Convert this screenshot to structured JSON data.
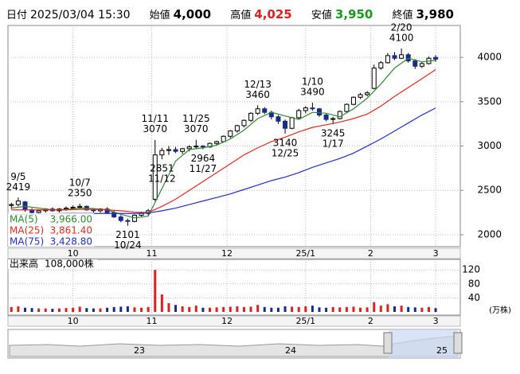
{
  "chart_data": {
    "type": "candlestick",
    "header": {
      "date_label": "日付",
      "datetime": "2025/03/04 15:30",
      "open_label": "始値",
      "open": "4,000",
      "high_label": "高値",
      "high": "4,025",
      "low_label": "安値",
      "low": "3,950",
      "close_label": "終値",
      "close": "3,980"
    },
    "ylim": [
      1865,
      4360
    ],
    "yticks": [
      2000,
      2500,
      3000,
      3500,
      4000
    ],
    "xlim": [
      -0.5,
      65.6
    ],
    "xticks": [
      {
        "value": 9,
        "label": "10"
      },
      {
        "value": 20.5,
        "label": "11"
      },
      {
        "value": 31.5,
        "label": "12"
      },
      {
        "value": 43,
        "label": "25/1"
      },
      {
        "value": 52.5,
        "label": "2"
      },
      {
        "value": 62,
        "label": "3"
      }
    ],
    "grid": true,
    "up_color": "#ffffff",
    "down_color": "#1a2a8c",
    "candles": [
      {
        "o": 2330,
        "h": 2360,
        "l": 2290,
        "c": 2340
      },
      {
        "o": 2340,
        "h": 2419,
        "l": 2320,
        "c": 2380,
        "high_label": "9/5"
      },
      {
        "o": 2370,
        "h": 2380,
        "l": 2260,
        "c": 2280
      },
      {
        "o": 2280,
        "h": 2300,
        "l": 2230,
        "c": 2250
      },
      {
        "o": 2250,
        "h": 2280,
        "l": 2230,
        "c": 2270
      },
      {
        "o": 2270,
        "h": 2300,
        "l": 2250,
        "c": 2290
      },
      {
        "o": 2290,
        "h": 2310,
        "l": 2260,
        "c": 2270
      },
      {
        "o": 2270,
        "h": 2300,
        "l": 2250,
        "c": 2290
      },
      {
        "o": 2290,
        "h": 2320,
        "l": 2270,
        "c": 2300
      },
      {
        "o": 2300,
        "h": 2330,
        "l": 2280,
        "c": 2310
      },
      {
        "o": 2310,
        "h": 2350,
        "l": 2290,
        "c": 2320,
        "high_label": "10/7"
      },
      {
        "o": 2320,
        "h": 2330,
        "l": 2270,
        "c": 2280
      },
      {
        "o": 2280,
        "h": 2300,
        "l": 2250,
        "c": 2270
      },
      {
        "o": 2270,
        "h": 2300,
        "l": 2250,
        "c": 2290
      },
      {
        "o": 2290,
        "h": 2310,
        "l": 2240,
        "c": 2250
      },
      {
        "o": 2250,
        "h": 2270,
        "l": 2190,
        "c": 2200
      },
      {
        "o": 2200,
        "h": 2220,
        "l": 2140,
        "c": 2160
      },
      {
        "o": 2160,
        "h": 2180,
        "l": 2101,
        "c": 2150,
        "low_label": "10/24"
      },
      {
        "o": 2150,
        "h": 2230,
        "l": 2140,
        "c": 2220
      },
      {
        "o": 2220,
        "h": 2260,
        "l": 2200,
        "c": 2240
      },
      {
        "o": 2240,
        "h": 2290,
        "l": 2220,
        "c": 2270
      },
      {
        "o": 2400,
        "h": 3070,
        "l": 2380,
        "c": 2900,
        "high_label": "11/11"
      },
      {
        "o": 2900,
        "h": 2980,
        "l": 2851,
        "c": 2950,
        "low_label": "11/12"
      },
      {
        "o": 2950,
        "h": 3000,
        "l": 2900,
        "c": 2960
      },
      {
        "o": 2960,
        "h": 2990,
        "l": 2920,
        "c": 2940
      },
      {
        "o": 2940,
        "h": 2980,
        "l": 2910,
        "c": 2970
      },
      {
        "o": 2970,
        "h": 3010,
        "l": 2940,
        "c": 2990
      },
      {
        "o": 2990,
        "h": 3070,
        "l": 2970,
        "c": 3000,
        "high_label": "11/25"
      },
      {
        "o": 3000,
        "h": 3010,
        "l": 2964,
        "c": 2990,
        "low_label": "11/27"
      },
      {
        "o": 2990,
        "h": 3040,
        "l": 2980,
        "c": 3030
      },
      {
        "o": 3030,
        "h": 3060,
        "l": 3010,
        "c": 3050
      },
      {
        "o": 3050,
        "h": 3120,
        "l": 3040,
        "c": 3110
      },
      {
        "o": 3110,
        "h": 3180,
        "l": 3090,
        "c": 3170
      },
      {
        "o": 3170,
        "h": 3240,
        "l": 3150,
        "c": 3230
      },
      {
        "o": 3230,
        "h": 3300,
        "l": 3210,
        "c": 3290
      },
      {
        "o": 3290,
        "h": 3380,
        "l": 3270,
        "c": 3370
      },
      {
        "o": 3370,
        "h": 3460,
        "l": 3350,
        "c": 3420,
        "high_label": "12/13"
      },
      {
        "o": 3420,
        "h": 3440,
        "l": 3360,
        "c": 3380
      },
      {
        "o": 3380,
        "h": 3400,
        "l": 3300,
        "c": 3330
      },
      {
        "o": 3330,
        "h": 3350,
        "l": 3250,
        "c": 3280
      },
      {
        "o": 3280,
        "h": 3300,
        "l": 3140,
        "c": 3200,
        "low_label": "12/25"
      },
      {
        "o": 3200,
        "h": 3330,
        "l": 3190,
        "c": 3320
      },
      {
        "o": 3320,
        "h": 3420,
        "l": 3300,
        "c": 3400
      },
      {
        "o": 3400,
        "h": 3450,
        "l": 3370,
        "c": 3430
      },
      {
        "o": 3430,
        "h": 3490,
        "l": 3400,
        "c": 3420,
        "high_label": "1/10"
      },
      {
        "o": 3420,
        "h": 3430,
        "l": 3330,
        "c": 3350
      },
      {
        "o": 3350,
        "h": 3370,
        "l": 3280,
        "c": 3300
      },
      {
        "o": 3300,
        "h": 3330,
        "l": 3245,
        "c": 3310,
        "low_label": "1/17"
      },
      {
        "o": 3310,
        "h": 3400,
        "l": 3300,
        "c": 3390
      },
      {
        "o": 3390,
        "h": 3480,
        "l": 3380,
        "c": 3470
      },
      {
        "o": 3470,
        "h": 3560,
        "l": 3460,
        "c": 3550
      },
      {
        "o": 3550,
        "h": 3600,
        "l": 3530,
        "c": 3580
      },
      {
        "o": 3580,
        "h": 3620,
        "l": 3560,
        "c": 3600
      },
      {
        "o": 3650,
        "h": 3920,
        "l": 3640,
        "c": 3880
      },
      {
        "o": 3880,
        "h": 3960,
        "l": 3860,
        "c": 3940
      },
      {
        "o": 3940,
        "h": 4050,
        "l": 3930,
        "c": 4020
      },
      {
        "o": 4020,
        "h": 4060,
        "l": 3970,
        "c": 3990
      },
      {
        "o": 3990,
        "h": 4100,
        "l": 3980,
        "c": 4030,
        "high_label": "2/20"
      },
      {
        "o": 4030,
        "h": 4050,
        "l": 3940,
        "c": 3960
      },
      {
        "o": 3960,
        "h": 3980,
        "l": 3870,
        "c": 3900
      },
      {
        "o": 3900,
        "h": 3950,
        "l": 3880,
        "c": 3930
      },
      {
        "o": 3930,
        "h": 4010,
        "l": 3920,
        "c": 3990
      },
      {
        "o": 4000,
        "h": 4025,
        "l": 3950,
        "c": 3980
      }
    ],
    "ma": [
      {
        "name": "MA(5)",
        "value_label": "3,966.00",
        "color": "#2e8b2e",
        "x": [
          0,
          2,
          4,
          6,
          8,
          10,
          12,
          14,
          16,
          18,
          20,
          22,
          24,
          26,
          28,
          30,
          32,
          34,
          36,
          38,
          40,
          42,
          44,
          46,
          48,
          50,
          52,
          54,
          56,
          58,
          60,
          62
        ],
        "values": [
          2300,
          2320,
          2300,
          2280,
          2285,
          2300,
          2295,
          2280,
          2230,
          2190,
          2210,
          2520,
          2830,
          2960,
          2980,
          3010,
          3080,
          3180,
          3310,
          3380,
          3340,
          3300,
          3380,
          3370,
          3330,
          3420,
          3540,
          3700,
          3880,
          3990,
          3950,
          3966
        ]
      },
      {
        "name": "MA(25)",
        "value_label": "3,861.40",
        "color": "#e8291c",
        "x": [
          0,
          2,
          4,
          6,
          8,
          10,
          12,
          14,
          16,
          18,
          20,
          22,
          24,
          26,
          28,
          30,
          32,
          34,
          36,
          38,
          40,
          42,
          44,
          46,
          48,
          50,
          52,
          54,
          56,
          58,
          60,
          62
        ],
        "values": [
          2280,
          2280,
          2280,
          2280,
          2280,
          2285,
          2285,
          2280,
          2270,
          2255,
          2250,
          2320,
          2400,
          2500,
          2600,
          2700,
          2800,
          2900,
          2980,
          3050,
          3100,
          3160,
          3210,
          3240,
          3270,
          3310,
          3360,
          3450,
          3560,
          3660,
          3760,
          3861.4
        ]
      },
      {
        "name": "MA(75)",
        "value_label": "3,428.80",
        "color": "#1f2fd0",
        "x": [
          0,
          2,
          4,
          6,
          8,
          10,
          12,
          14,
          16,
          18,
          20,
          22,
          24,
          26,
          28,
          30,
          32,
          34,
          36,
          38,
          40,
          42,
          44,
          46,
          48,
          50,
          52,
          54,
          56,
          58,
          60,
          62
        ],
        "values": [
          2230,
          2230,
          2230,
          2235,
          2240,
          2240,
          2240,
          2240,
          2240,
          2240,
          2245,
          2270,
          2300,
          2340,
          2380,
          2420,
          2460,
          2510,
          2560,
          2610,
          2650,
          2700,
          2760,
          2810,
          2860,
          2920,
          3000,
          3080,
          3170,
          3260,
          3350,
          3428.8
        ]
      }
    ],
    "volume": {
      "name": "出来高",
      "last_label": "108,000株",
      "unit": "(万株)",
      "ylim": [
        0,
        150
      ],
      "yticks": [
        40,
        80,
        120
      ],
      "up_color": "#e02020",
      "down_color": "#1a2a8c",
      "values": [
        14,
        16,
        12,
        11,
        10,
        10,
        9,
        10,
        11,
        12,
        15,
        11,
        10,
        10,
        12,
        14,
        15,
        16,
        13,
        12,
        14,
        120,
        50,
        25,
        20,
        16,
        14,
        18,
        12,
        12,
        13,
        14,
        15,
        16,
        14,
        15,
        20,
        14,
        12,
        12,
        16,
        15,
        14,
        16,
        18,
        13,
        12,
        14,
        13,
        14,
        15,
        12,
        13,
        28,
        18,
        22,
        16,
        18,
        14,
        13,
        12,
        14,
        10.8
      ]
    },
    "navigator": {
      "labels": [
        "23",
        "24",
        "25"
      ]
    }
  }
}
